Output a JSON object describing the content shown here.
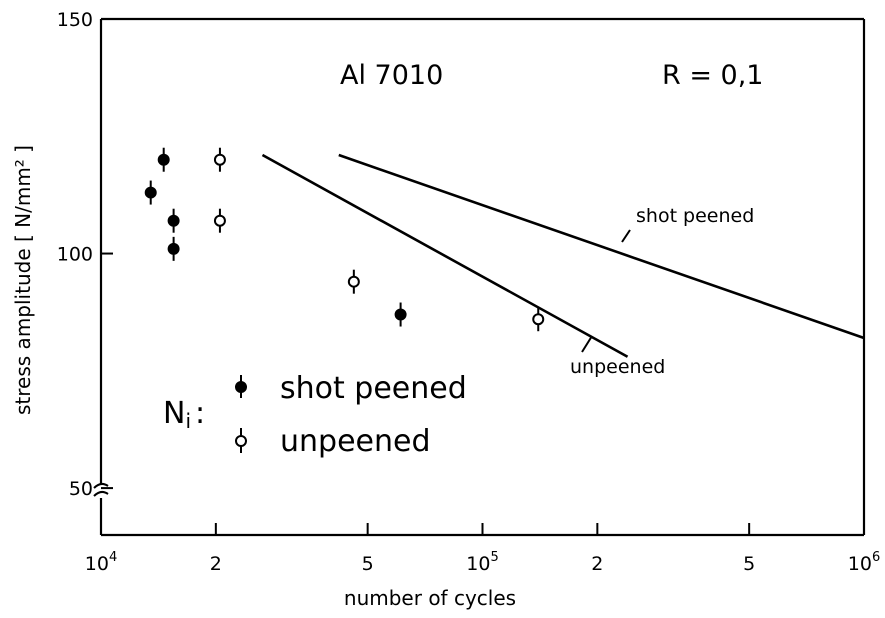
{
  "chart_data": {
    "type": "line",
    "title": "",
    "annotations": {
      "material": "Al 7010",
      "ratio": "R = 0,1",
      "ni_prefix": "N",
      "ni_sub": "i",
      "ni_colon": ":"
    },
    "xlabel": "number of cycles",
    "ylabel": "stress amplitude [ N/mm² ]",
    "xscale": "log",
    "xlim": [
      10000,
      1000000
    ],
    "ylim": [
      40,
      150
    ],
    "y_axis_break": true,
    "x_ticks": [
      {
        "value": 10000,
        "base": "10",
        "exp": "4"
      },
      {
        "value": 20000,
        "label": "2"
      },
      {
        "value": 50000,
        "label": "5"
      },
      {
        "value": 100000,
        "base": "10",
        "exp": "5"
      },
      {
        "value": 200000,
        "label": "2"
      },
      {
        "value": 500000,
        "label": "5"
      },
      {
        "value": 1000000,
        "base": "10",
        "exp": "6"
      }
    ],
    "y_ticks": [
      {
        "value": 50,
        "label": "50"
      },
      {
        "value": 100,
        "label": "100"
      },
      {
        "value": 150,
        "label": "150"
      }
    ],
    "series": [
      {
        "name": "shot peened",
        "kind": "line",
        "points": [
          {
            "x": 42000,
            "y": 121
          },
          {
            "x": 1000000,
            "y": 82
          }
        ]
      },
      {
        "name": "unpeened",
        "kind": "line",
        "points": [
          {
            "x": 26500,
            "y": 121
          },
          {
            "x": 240000,
            "y": 78
          }
        ]
      }
    ],
    "scatter": [
      {
        "name": "shot peened",
        "marker": "filled",
        "points": [
          {
            "x": 13500,
            "y": 113
          },
          {
            "x": 14600,
            "y": 120
          },
          {
            "x": 15500,
            "y": 107
          },
          {
            "x": 15500,
            "y": 101
          },
          {
            "x": 61000,
            "y": 87
          }
        ]
      },
      {
        "name": "unpeened",
        "marker": "open",
        "points": [
          {
            "x": 20500,
            "y": 120
          },
          {
            "x": 20500,
            "y": 107
          },
          {
            "x": 46000,
            "y": 94
          },
          {
            "x": 140000,
            "y": 86
          }
        ]
      }
    ],
    "curve_labels": [
      "shot peened",
      "unpeened"
    ],
    "legend": {
      "placement": "bottom-left",
      "entries": [
        {
          "label": "shot peened",
          "marker": "filled"
        },
        {
          "label": "unpeened",
          "marker": "open"
        }
      ]
    },
    "grid": false,
    "colors": {
      "ink": "#000000",
      "background": "#ffffff"
    }
  }
}
